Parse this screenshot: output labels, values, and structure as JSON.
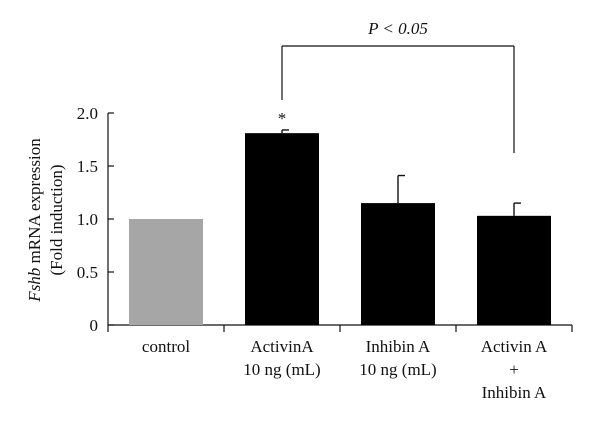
{
  "chart_data": {
    "type": "bar",
    "ylabel_italic": "Fshb",
    "ylabel_rest": "mRNA expression",
    "ylabel_line2": "(Fold induction)",
    "ylim": [
      0,
      2.0
    ],
    "yticks": [
      "0",
      "0.5",
      "1.0",
      "1.5",
      "2.0"
    ],
    "ytick_values": [
      0,
      0.5,
      1.0,
      1.5,
      2.0
    ],
    "grid": false,
    "categories": [
      [
        "control"
      ],
      [
        "ActivinA",
        "10 ng (mL)"
      ],
      [
        "Inhibin A",
        "10 ng (mL)"
      ],
      [
        "Activin A",
        "+",
        "Inhibin A"
      ]
    ],
    "values": [
      1.0,
      1.81,
      1.15,
      1.03
    ],
    "errors": [
      0.0,
      0.03,
      0.26,
      0.12
    ],
    "colors": [
      "#a6a6a6",
      "#000000",
      "#000000",
      "#000000"
    ],
    "annotations": [
      {
        "type": "asterisk",
        "text": "*",
        "category_index": 1
      },
      {
        "type": "bracket",
        "text": "P < 0.05",
        "from_index": 1,
        "to_index": 3
      }
    ]
  }
}
